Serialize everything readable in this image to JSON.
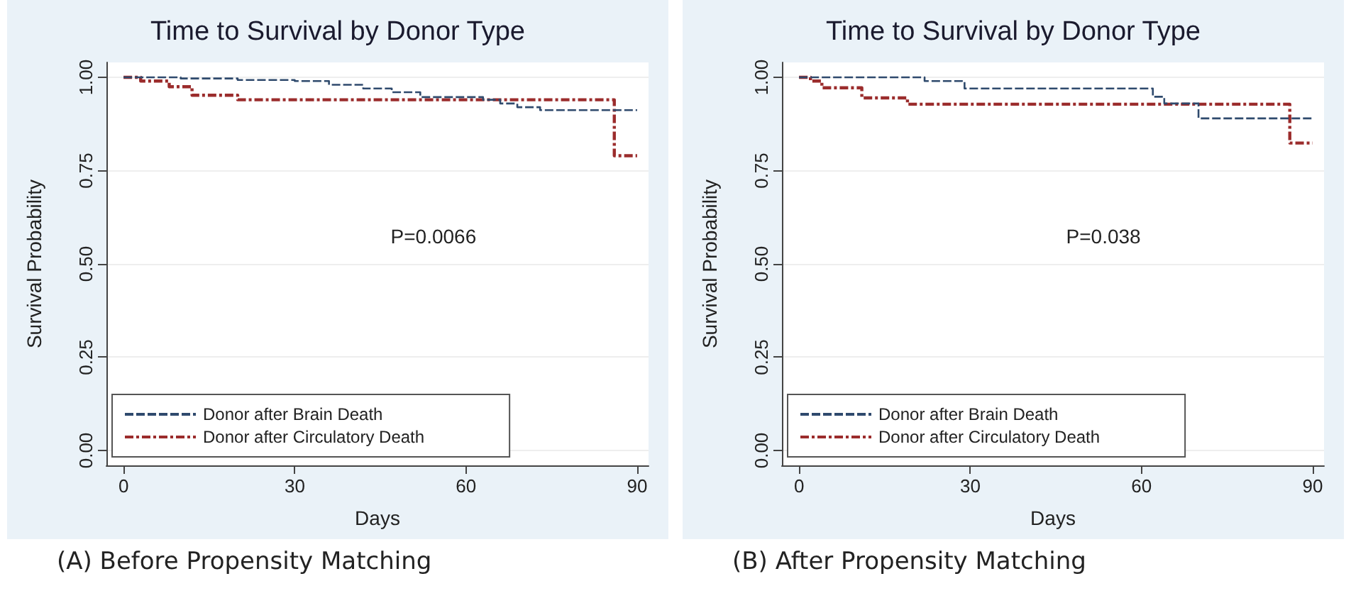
{
  "chart_data": [
    {
      "type": "step",
      "title": "Time to Survival by Donor Type",
      "xlabel": "Days",
      "ylabel": "Survival Probability",
      "annotations": [
        "P=0.0066",
        "(A)  Before Propensity Matching"
      ],
      "xlim": [
        -3,
        92
      ],
      "xticks": [
        0,
        30,
        60,
        90
      ],
      "ylim": [
        -0.04,
        1.04
      ],
      "yticks": [
        {
          "value": 0,
          "label": "0.00"
        },
        {
          "value": 0.25,
          "label": "0.25"
        },
        {
          "value": 0.5,
          "label": "0.50"
        },
        {
          "value": 0.75,
          "label": "0.75"
        },
        {
          "value": 1,
          "label": "1.00"
        }
      ],
      "grid": "y",
      "legend": "bottom left",
      "marker": "none",
      "series": [
        {
          "name": "Donor after Brain Death",
          "color": "#2f4a6d",
          "line_style": "dashed",
          "x": [
            0,
            10,
            20,
            30,
            36,
            42,
            47,
            52,
            63,
            66,
            69,
            73,
            90
          ],
          "values": [
            1,
            0.997,
            0.993,
            0.99,
            0.98,
            0.97,
            0.96,
            0.947,
            0.94,
            0.93,
            0.92,
            0.912,
            0.912
          ]
        },
        {
          "name": "Donor after Circulatory Death",
          "color": "#9b2c2c",
          "line_style": "dashdot",
          "x": [
            0,
            3,
            8,
            12,
            20,
            86,
            90
          ],
          "values": [
            1,
            0.99,
            0.975,
            0.952,
            0.94,
            0.79,
            0.79
          ]
        }
      ]
    },
    {
      "type": "step",
      "title": "Time to Survival by Donor Type",
      "xlabel": "Days",
      "ylabel": "Survival Probability",
      "annotations": [
        "P=0.038",
        "(B) After Propensity Matching"
      ],
      "xlim": [
        -3,
        92
      ],
      "xticks": [
        0,
        30,
        60,
        90
      ],
      "ylim": [
        -0.04,
        1.04
      ],
      "yticks": [
        {
          "value": 0,
          "label": "0.00"
        },
        {
          "value": 0.25,
          "label": "0.25"
        },
        {
          "value": 0.5,
          "label": "0.50"
        },
        {
          "value": 0.75,
          "label": "0.75"
        },
        {
          "value": 1,
          "label": "1.00"
        }
      ],
      "grid": "y",
      "legend": "bottom left",
      "marker": "none",
      "series": [
        {
          "name": "Donor after Brain Death",
          "color": "#2f4a6d",
          "line_style": "dashed",
          "x": [
            0,
            22,
            29,
            62,
            64,
            70,
            90
          ],
          "values": [
            1,
            0.99,
            0.97,
            0.948,
            0.93,
            0.89,
            0.89
          ]
        },
        {
          "name": "Donor after Circulatory Death",
          "color": "#9b2c2c",
          "line_style": "dashdot",
          "x": [
            0,
            2,
            4,
            11,
            19,
            86,
            90
          ],
          "values": [
            1,
            0.99,
            0.972,
            0.945,
            0.928,
            0.824,
            0.824
          ]
        }
      ]
    }
  ]
}
